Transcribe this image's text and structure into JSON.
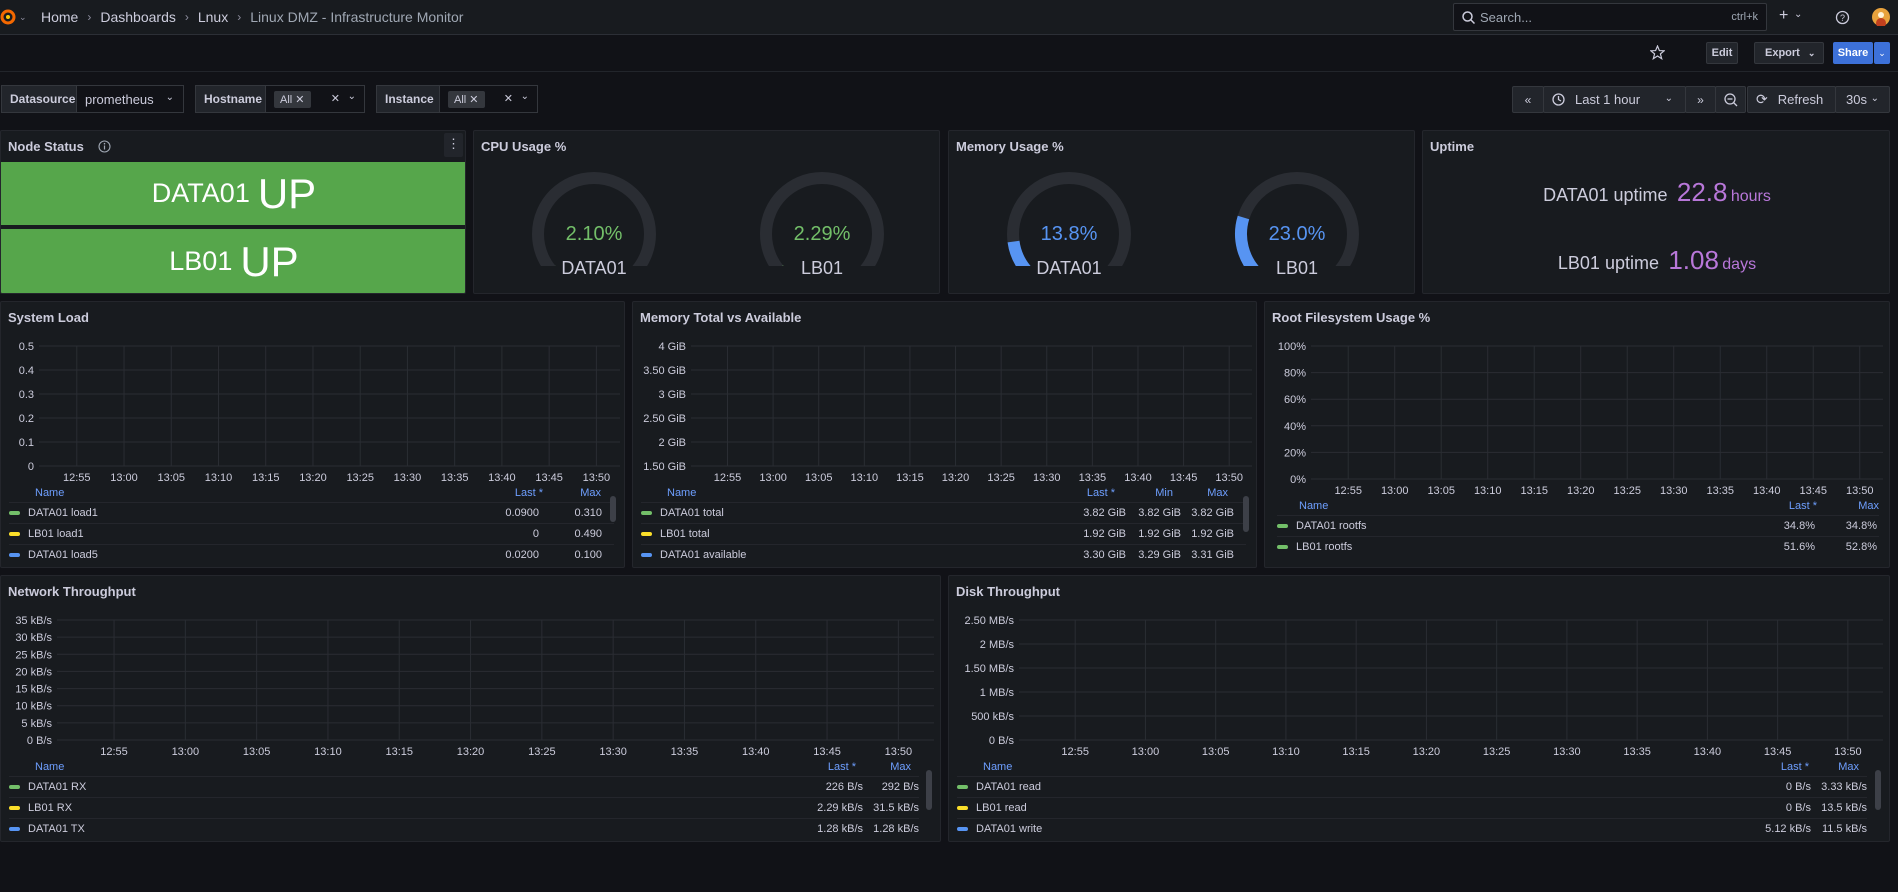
{
  "colors": {
    "green": "#73bf69",
    "yellow": "#fade2a",
    "blue": "#5794f2",
    "orange": "#ff9830",
    "purple": "#b877d9",
    "red": "#f2495c",
    "status_green": "#56a64b",
    "accent": "#3d71d9"
  },
  "breadcrumbs": [
    "Home",
    "Dashboards",
    "Lnux",
    "Linux DMZ - Infrastructure Monitor"
  ],
  "search": {
    "placeholder": "Search...",
    "shortcut": "ctrl+k"
  },
  "toolbar": {
    "edit": "Edit",
    "export": "Export",
    "share": "Share"
  },
  "variables": [
    {
      "label": "Datasource",
      "value": "prometheus"
    },
    {
      "label": "Hostname",
      "value": "All"
    },
    {
      "label": "Instance",
      "value": "All"
    }
  ],
  "time": {
    "range": "Last 1 hour",
    "refresh": "Refresh",
    "interval": "30s"
  },
  "node_status": {
    "title": "Node Status",
    "items": [
      {
        "host": "DATA01",
        "state": "UP"
      },
      {
        "host": "LB01",
        "state": "UP"
      }
    ]
  },
  "cpu": {
    "title": "CPU Usage %",
    "gauges": [
      {
        "host": "DATA01",
        "value_text": "2.10%",
        "value": 2.1
      },
      {
        "host": "LB01",
        "value_text": "2.29%",
        "value": 2.29
      }
    ]
  },
  "memory": {
    "title": "Memory Usage %",
    "gauges": [
      {
        "host": "DATA01",
        "value_text": "13.8%",
        "value": 13.8
      },
      {
        "host": "LB01",
        "value_text": "23.0%",
        "value": 23.0
      }
    ]
  },
  "uptime": {
    "title": "Uptime",
    "items": [
      {
        "label": "DATA01 uptime",
        "value": "22.8",
        "unit": "hours"
      },
      {
        "label": "LB01 uptime",
        "value": "1.08",
        "unit": "days"
      }
    ]
  },
  "times": [
    "12:55",
    "13:00",
    "13:05",
    "13:10",
    "13:15",
    "13:20",
    "13:25",
    "13:30",
    "13:35",
    "13:40",
    "13:45",
    "13:50"
  ],
  "system_load": {
    "title": "System Load",
    "yticks": [
      "0.5",
      "0.4",
      "0.3",
      "0.2",
      "0.1",
      "0"
    ],
    "legend_head": {
      "name": "Name",
      "c1": "Last *",
      "c2": "Max"
    },
    "rows": [
      {
        "name": "DATA01 load1",
        "c1": "0.0900",
        "c2": "0.310",
        "color": "green"
      },
      {
        "name": "LB01 load1",
        "c1": "0",
        "c2": "0.490",
        "color": "yellow"
      },
      {
        "name": "DATA01 load5",
        "c1": "0.0200",
        "c2": "0.100",
        "color": "blue"
      }
    ]
  },
  "mem_total": {
    "title": "Memory Total vs Available",
    "yticks": [
      "4 GiB",
      "3.50 GiB",
      "3 GiB",
      "2.50 GiB",
      "2 GiB",
      "1.50 GiB"
    ],
    "legend_head": {
      "name": "Name",
      "c1": "Last *",
      "c2": "Min",
      "c3": "Max"
    },
    "rows": [
      {
        "name": "DATA01 total",
        "c1": "3.82 GiB",
        "c2": "3.82 GiB",
        "c3": "3.82 GiB",
        "color": "green"
      },
      {
        "name": "LB01 total",
        "c1": "1.92 GiB",
        "c2": "1.92 GiB",
        "c3": "1.92 GiB",
        "color": "yellow"
      },
      {
        "name": "DATA01 available",
        "c1": "3.30 GiB",
        "c2": "3.29 GiB",
        "c3": "3.31 GiB",
        "color": "blue"
      }
    ]
  },
  "rootfs": {
    "title": "Root Filesystem Usage %",
    "yticks": [
      "100%",
      "80%",
      "60%",
      "40%",
      "20%",
      "0%"
    ],
    "legend_head": {
      "name": "Name",
      "c1": "Last *",
      "c2": "Max"
    },
    "rows": [
      {
        "name": "DATA01 rootfs",
        "c1": "34.8%",
        "c2": "34.8%",
        "color": "green"
      },
      {
        "name": "LB01 rootfs",
        "c1": "51.6%",
        "c2": "52.8%",
        "color": "green"
      }
    ]
  },
  "network": {
    "title": "Network Throughput",
    "yticks": [
      "35 kB/s",
      "30 kB/s",
      "25 kB/s",
      "20 kB/s",
      "15 kB/s",
      "10 kB/s",
      "5 kB/s",
      "0 B/s"
    ],
    "legend_head": {
      "name": "Name",
      "c1": "Last *",
      "c2": "Max"
    },
    "rows": [
      {
        "name": "DATA01 RX",
        "c1": "226 B/s",
        "c2": "292 B/s",
        "color": "green"
      },
      {
        "name": "LB01 RX",
        "c1": "2.29 kB/s",
        "c2": "31.5 kB/s",
        "color": "yellow"
      },
      {
        "name": "DATA01 TX",
        "c1": "1.28 kB/s",
        "c2": "1.28 kB/s",
        "color": "blue"
      }
    ]
  },
  "disk": {
    "title": "Disk Throughput",
    "yticks": [
      "2.50 MB/s",
      "2 MB/s",
      "1.50 MB/s",
      "1 MB/s",
      "500 kB/s",
      "0 B/s"
    ],
    "legend_head": {
      "name": "Name",
      "c1": "Last *",
      "c2": "Max"
    },
    "rows": [
      {
        "name": "DATA01 read",
        "c1": "0 B/s",
        "c2": "3.33 kB/s",
        "color": "green"
      },
      {
        "name": "LB01 read",
        "c1": "0 B/s",
        "c2": "13.5 kB/s",
        "color": "yellow"
      },
      {
        "name": "DATA01 write",
        "c1": "5.12 kB/s",
        "c2": "11.5 kB/s",
        "color": "blue"
      }
    ]
  }
}
